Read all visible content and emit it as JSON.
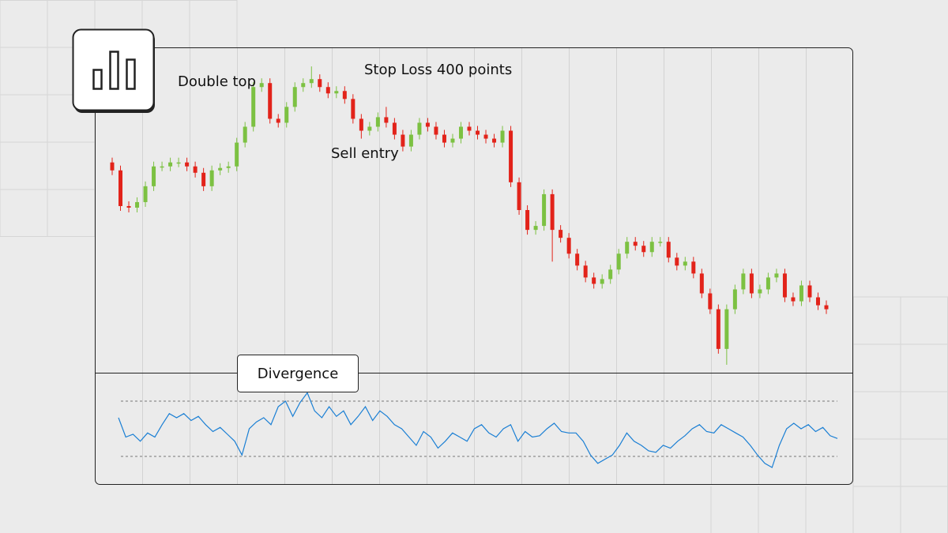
{
  "chart_data": [
    {
      "type": "candlestick",
      "annotations": [
        "Double top",
        "Stop Loss 400 points",
        "Sell entry"
      ],
      "open": [
        265,
        255,
        210,
        208,
        215,
        235,
        260,
        260,
        265,
        265,
        260,
        252,
        235,
        255,
        258,
        260,
        290,
        310,
        360,
        365,
        320,
        315,
        335,
        360,
        365,
        370,
        360,
        352,
        355,
        345,
        320,
        305,
        310,
        322,
        315,
        300,
        285,
        300,
        315,
        310,
        300,
        290,
        295,
        310,
        305,
        300,
        295,
        290,
        305,
        240,
        205,
        180,
        185,
        225,
        180,
        170,
        150,
        135,
        120,
        112,
        118,
        130,
        150,
        165,
        160,
        152,
        165,
        165,
        145,
        135,
        140,
        125,
        100,
        80,
        30,
        80,
        105,
        125,
        100,
        105,
        120,
        125,
        95,
        90,
        110,
        95,
        85
      ],
      "high": [
        271,
        261,
        216,
        221,
        241,
        266,
        266,
        271,
        271,
        271,
        266,
        258,
        261,
        264,
        266,
        296,
        316,
        366,
        371,
        371,
        326,
        341,
        366,
        371,
        386,
        376,
        366,
        361,
        361,
        351,
        326,
        316,
        328,
        335,
        321,
        306,
        306,
        321,
        321,
        316,
        306,
        301,
        316,
        316,
        311,
        306,
        301,
        311,
        311,
        246,
        211,
        191,
        231,
        231,
        186,
        176,
        156,
        141,
        126,
        124,
        136,
        156,
        171,
        171,
        166,
        171,
        171,
        171,
        151,
        146,
        146,
        131,
        106,
        86,
        86,
        111,
        131,
        131,
        111,
        126,
        131,
        131,
        101,
        116,
        116,
        101,
        91
      ],
      "low": [
        249,
        204,
        202,
        202,
        209,
        229,
        254,
        254,
        259,
        254,
        246,
        229,
        229,
        249,
        252,
        254,
        284,
        304,
        354,
        314,
        309,
        309,
        329,
        354,
        359,
        354,
        346,
        346,
        339,
        314,
        295,
        299,
        304,
        309,
        294,
        279,
        279,
        294,
        304,
        294,
        284,
        284,
        289,
        299,
        294,
        289,
        284,
        284,
        234,
        199,
        174,
        174,
        179,
        140,
        164,
        144,
        129,
        114,
        106,
        106,
        112,
        124,
        144,
        154,
        146,
        146,
        159,
        139,
        129,
        129,
        119,
        94,
        74,
        24,
        10,
        74,
        99,
        94,
        94,
        99,
        114,
        89,
        84,
        84,
        89,
        79,
        74
      ],
      "close": [
        255,
        210,
        208,
        215,
        235,
        260,
        260,
        265,
        265,
        260,
        252,
        235,
        255,
        258,
        260,
        290,
        310,
        360,
        365,
        320,
        315,
        335,
        360,
        365,
        370,
        360,
        352,
        355,
        345,
        320,
        305,
        310,
        322,
        315,
        300,
        285,
        300,
        315,
        310,
        300,
        290,
        295,
        310,
        305,
        300,
        295,
        290,
        305,
        240,
        205,
        180,
        185,
        225,
        180,
        170,
        150,
        135,
        120,
        112,
        118,
        130,
        150,
        165,
        160,
        152,
        165,
        165,
        145,
        135,
        140,
        125,
        100,
        80,
        30,
        80,
        105,
        125,
        100,
        105,
        120,
        125,
        95,
        90,
        110,
        95,
        85,
        80
      ],
      "ylim": [
        0,
        410
      ],
      "up_color": "#7cc142",
      "down_color": "#e2231a"
    },
    {
      "type": "line",
      "title": "Divergence",
      "values": [
        58,
        44,
        46,
        41,
        47,
        44,
        53,
        61,
        58,
        61,
        56,
        59,
        53,
        48,
        51,
        46,
        41,
        31,
        50,
        55,
        58,
        53,
        66,
        70,
        59,
        69,
        76,
        63,
        58,
        66,
        59,
        63,
        53,
        59,
        66,
        56,
        63,
        59,
        53,
        50,
        44,
        38,
        48,
        44,
        36,
        41,
        47,
        44,
        41,
        50,
        53,
        47,
        44,
        50,
        53,
        41,
        48,
        44,
        45,
        50,
        54,
        48,
        47,
        47,
        41,
        31,
        25,
        28,
        31,
        38,
        47,
        41,
        38,
        34,
        33,
        38,
        36,
        41,
        45,
        50,
        53,
        48,
        47,
        53,
        50,
        47,
        44,
        38,
        31,
        25,
        22,
        38,
        50,
        54,
        50,
        53,
        48,
        51,
        45,
        43
      ],
      "levels": [
        30,
        70
      ],
      "ylim": [
        10,
        90
      ],
      "color": "#1a7fd4"
    }
  ]
}
